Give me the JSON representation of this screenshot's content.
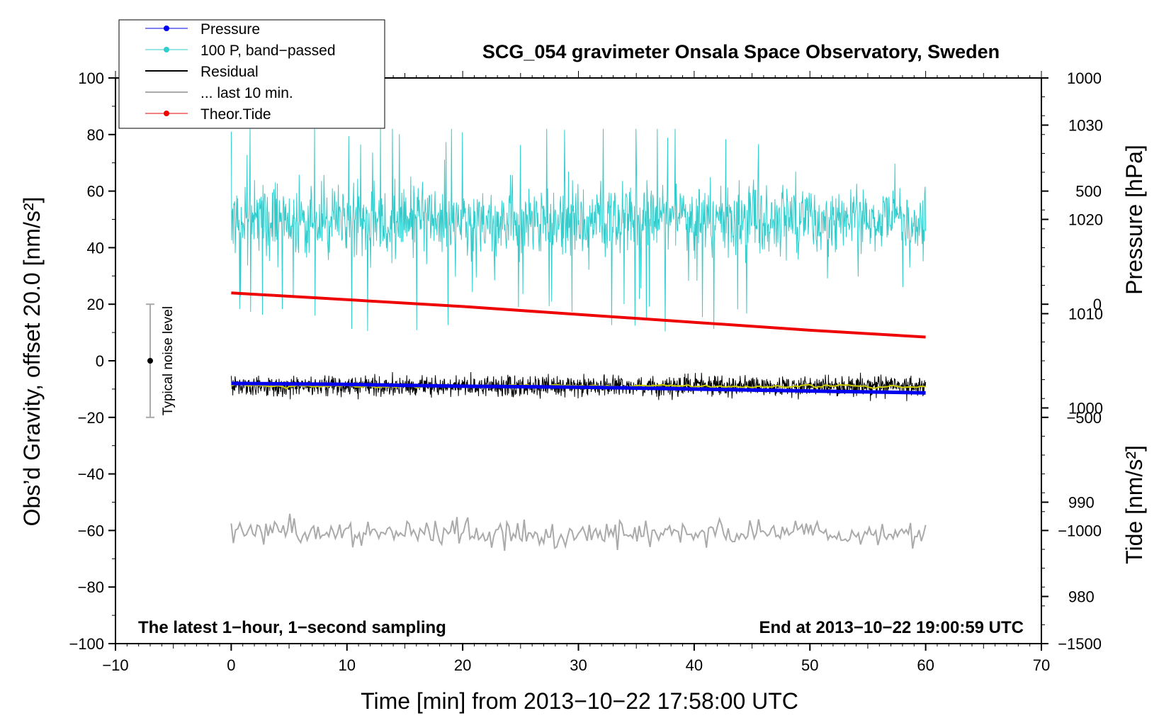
{
  "chart_data": {
    "type": "line",
    "title": "SCG_054 gravimeter Onsala Space Observatory, Sweden",
    "xlabel": "Time [min] from 2013−10−22 17:58:00 UTC",
    "ylabel_left": "Obs’d Gravity, offset 20.0 [nm/s²]",
    "ylabel_pressure": "Pressure [hPa]",
    "ylabel_tide": "Tide [nm/s²]",
    "xlim": [
      -10,
      70
    ],
    "ylim": [
      -100,
      100
    ],
    "pressure_lim": [
      975,
      1035
    ],
    "tide_lim": [
      -1500,
      1000
    ],
    "x_ticks": [
      "−10",
      "0",
      "10",
      "20",
      "30",
      "40",
      "50",
      "60",
      "70"
    ],
    "y_ticks": [
      "−100",
      "−80",
      "−60",
      "−40",
      "−20",
      "0",
      "20",
      "40",
      "60",
      "80",
      "100"
    ],
    "pressure_ticks": [
      "980",
      "990",
      "1000",
      "1010",
      "1020",
      "1030"
    ],
    "tide_ticks": [
      "−1500",
      "−1000",
      "−500",
      "0",
      "500",
      "1000"
    ],
    "legend": [
      {
        "label": "Pressure",
        "color": "#0000ee"
      },
      {
        "label": "100 P, band−passed",
        "color": "#33cccc"
      },
      {
        "label": "Residual",
        "color": "#000000"
      },
      {
        "label": "... last 10 min.",
        "color": "#aaaaaa"
      },
      {
        "label": "Theor.Tide",
        "color": "#ee0000"
      }
    ],
    "annotation_left": "The latest 1−hour, 1−second sampling",
    "annotation_right": "End at 2013−10−22 19:00:59 UTC",
    "noise_label": "Typical noise level",
    "noise_bar": {
      "x": -7,
      "center": 0,
      "low": -20,
      "high": 20
    },
    "colors": {
      "residual_smooth": "#cccc00",
      "noise": "#aaaaaa"
    },
    "series": [
      {
        "name": "Pressure",
        "axis": "pressure",
        "x": [
          0,
          10,
          20,
          30,
          40,
          50,
          60
        ],
        "values": [
          1002.6,
          1002.5,
          1002.3,
          1002.2,
          1002.0,
          1001.8,
          1001.6
        ]
      },
      {
        "name": "100 P, band-passed",
        "axis": "left",
        "x_range": [
          0,
          60
        ],
        "center": 50,
        "typical_range": [
          30,
          70
        ],
        "extremes": [
          7,
          82
        ]
      },
      {
        "name": "Residual",
        "axis": "left",
        "x_range": [
          0,
          60
        ],
        "center": -9,
        "typical_range": [
          -14,
          -4
        ],
        "extremes": [
          -17,
          1
        ]
      },
      {
        "name": "Residual smoothed",
        "axis": "left",
        "x_range": [
          0,
          60
        ],
        "center": -9
      },
      {
        "name": "... last 10 min.",
        "axis": "left",
        "x_range": [
          0,
          60
        ],
        "center": -61,
        "typical_range": [
          -69,
          -55
        ]
      },
      {
        "name": "Theor.Tide",
        "axis": "tide",
        "x": [
          0,
          10,
          20,
          30,
          40,
          50,
          60
        ],
        "values": [
          50,
          20,
          -10,
          -45,
          -80,
          -115,
          -145
        ]
      }
    ]
  }
}
